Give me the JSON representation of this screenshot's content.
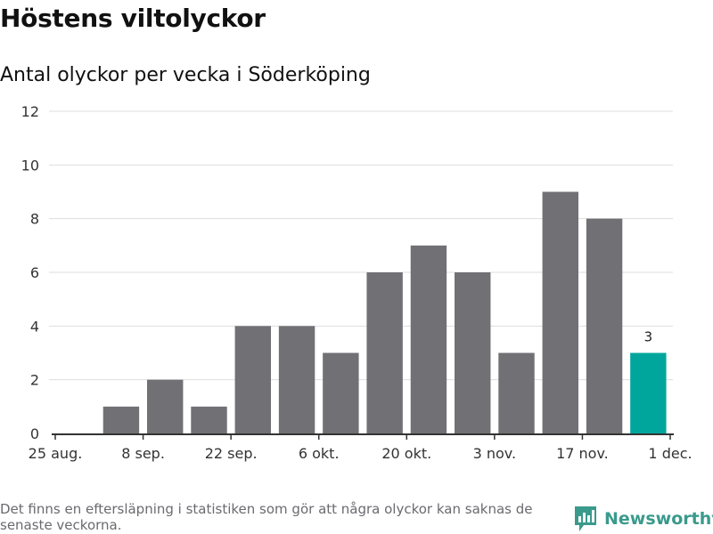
{
  "title": "Höstens viltolyckor",
  "subtitle": "Antal olyckor per vecka i Söderköping",
  "footnote": "Det finns en eftersläpning i statistiken som gör att några olyckor kan saknas de senaste veckorna.",
  "brand": "Newsworthy",
  "colors": {
    "bar": "#717075",
    "highlight": "#00a69c",
    "grid": "#dddddd",
    "axis": "#333333",
    "brand": "#3a9a8c"
  },
  "chart_data": {
    "type": "bar",
    "title": "Antal olyckor per vecka i Söderköping",
    "xlabel": "",
    "ylabel": "",
    "x": [
      "2025-09-01",
      "2025-09-08",
      "2025-09-15",
      "2025-09-22",
      "2025-09-29",
      "2025-10-06",
      "2025-10-13",
      "2025-10-20",
      "2025-10-27",
      "2025-11-03",
      "2025-11-10",
      "2025-11-17",
      "2025-11-24"
    ],
    "values": [
      1,
      2,
      1,
      4,
      4,
      3,
      6,
      7,
      6,
      3,
      9,
      8,
      3
    ],
    "highlight_index": 12,
    "data_labels": [
      {
        "index": 12,
        "text": "3"
      }
    ],
    "xlim": [
      "2025-08-25",
      "2025-12-01"
    ],
    "x_ticks": [
      {
        "date": "2025-08-25",
        "label": "25 aug."
      },
      {
        "date": "2025-09-08",
        "label": "8 sep."
      },
      {
        "date": "2025-09-22",
        "label": "22 sep."
      },
      {
        "date": "2025-10-06",
        "label": "6 okt."
      },
      {
        "date": "2025-10-20",
        "label": "20 okt."
      },
      {
        "date": "2025-11-03",
        "label": "3 nov."
      },
      {
        "date": "2025-11-17",
        "label": "17 nov."
      },
      {
        "date": "2025-12-01",
        "label": "1 dec."
      }
    ],
    "ylim": [
      0,
      12
    ],
    "y_ticks": [
      0,
      2,
      4,
      6,
      8,
      10,
      12
    ],
    "grid": true,
    "legend": "none"
  }
}
